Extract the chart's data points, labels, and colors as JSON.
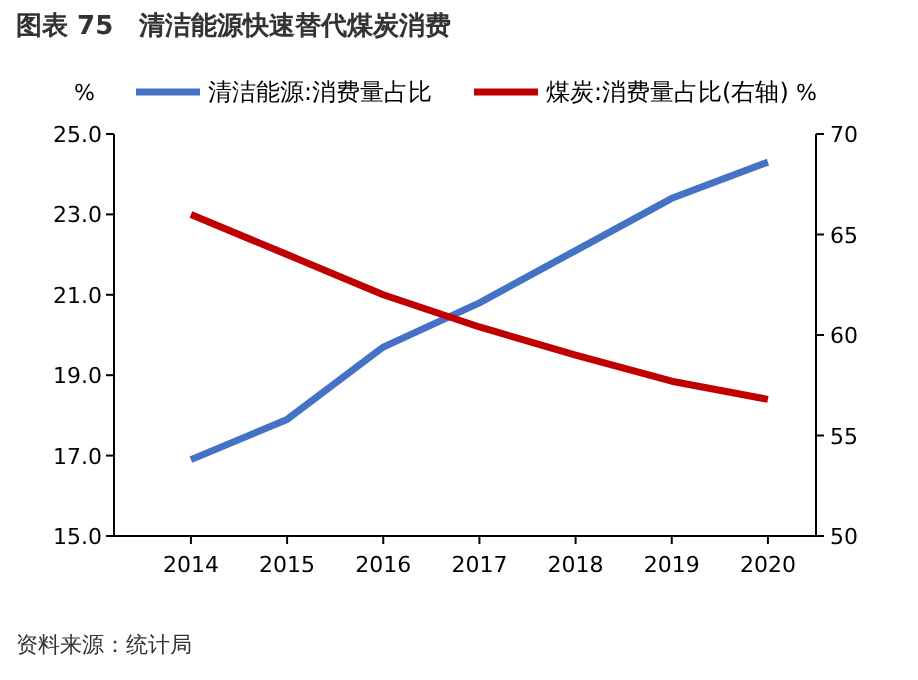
{
  "chart_data": {
    "type": "line",
    "title": "图表 75　清洁能源快速替代煤炭消费",
    "ylabel": "%",
    "y2label": "%",
    "categories": [
      "2014",
      "2015",
      "2016",
      "2017",
      "2018",
      "2019",
      "2020"
    ],
    "series": [
      {
        "name": "清洁能源:消费量占比",
        "color": "#4472c4",
        "values": [
          16.9,
          17.9,
          19.7,
          20.8,
          22.1,
          23.4,
          24.3
        ]
      },
      {
        "name": "煤炭:消费量占比(右轴)",
        "color": "#c00000",
        "axis": "y2",
        "values": [
          66,
          64,
          62,
          60.4,
          59,
          57.7,
          56.8
        ]
      }
    ],
    "ylim": [
      15,
      25
    ],
    "yticks": [
      {
        "value": 15,
        "label": "15.0"
      },
      {
        "value": 17,
        "label": "17.0"
      },
      {
        "value": 19,
        "label": "19.0"
      },
      {
        "value": 21,
        "label": "21.0"
      },
      {
        "value": 23,
        "label": "23.0"
      },
      {
        "value": 25,
        "label": "25.0"
      }
    ],
    "y2lim": [
      50,
      70
    ],
    "y2ticks": [
      50,
      55,
      60,
      65,
      70
    ],
    "legend": "top",
    "marker": "none",
    "line_style": "solid",
    "grid": false,
    "annotations": [
      "资料来源：统计局"
    ]
  }
}
